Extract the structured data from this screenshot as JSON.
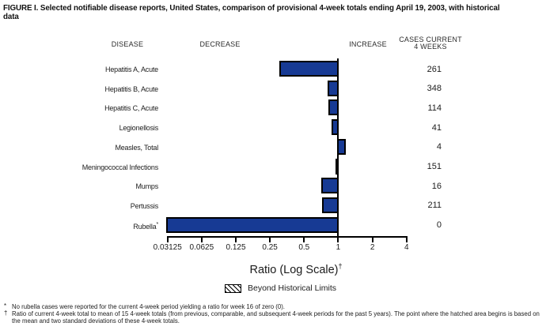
{
  "title": "FIGURE I. Selected notifiable disease reports, United States, comparison of provisional 4-week totals ending April 19, 2003, with historical data",
  "columns": {
    "disease": "DISEASE",
    "decrease": "DECREASE",
    "increase": "INCREASE",
    "cases_line1": "CASES CURRENT",
    "cases_line2": "4 WEEKS"
  },
  "chart_data": {
    "type": "bar",
    "orientation": "horizontal",
    "scale": "log2",
    "title": "Ratio (Log Scale)",
    "axis_label": "Ratio (Log Scale)",
    "axis_label_sup": "†",
    "baseline_value": 1,
    "xlim": [
      0.03125,
      4
    ],
    "tick_values": [
      0.03125,
      0.0625,
      0.125,
      0.25,
      0.5,
      1,
      2,
      4
    ],
    "tick_labels": [
      "0.03125",
      "0.0625",
      "0.125",
      "0.25",
      "0.5",
      "1",
      "2",
      "4"
    ],
    "series": [
      {
        "label": "Hepatitis A, Acute",
        "sup": "",
        "ratio": 0.31,
        "cases": "261"
      },
      {
        "label": "Hepatitis B, Acute",
        "sup": "",
        "ratio": 0.82,
        "cases": "348"
      },
      {
        "label": "Hepatitis C, Acute",
        "sup": "",
        "ratio": 0.84,
        "cases": "114"
      },
      {
        "label": "Legionellosis",
        "sup": "",
        "ratio": 0.9,
        "cases": "41"
      },
      {
        "label": "Measles, Total",
        "sup": "",
        "ratio": 1.16,
        "cases": "4"
      },
      {
        "label": "Meningococcal Infections",
        "sup": "",
        "ratio": 0.97,
        "cases": "151"
      },
      {
        "label": "Mumps",
        "sup": "",
        "ratio": 0.72,
        "cases": "16"
      },
      {
        "label": "Pertussis",
        "sup": "",
        "ratio": 0.74,
        "cases": "211"
      },
      {
        "label": "Rubella",
        "sup": "*",
        "ratio": 0.03125,
        "cases": "0"
      }
    ],
    "legend": {
      "swatch": "diagonal-hatch",
      "label": "Beyond Historical Limits"
    },
    "colors": {
      "bar_fill": "#173a94",
      "bar_border": "#000000",
      "axis": "#000000"
    }
  },
  "footnotes": [
    {
      "marker": "*",
      "text": "No rubella cases were reported for the current 4-week period yielding a ratio for week 16 of zero (0)."
    },
    {
      "marker": "†",
      "text": "Ratio of current 4-week total to mean of 15 4-week totals (from previous, comparable, and subsequent 4-week periods for the past 5 years). The point where the hatched area begins is based on the mean and two standard deviations of these 4-week totals."
    }
  ]
}
